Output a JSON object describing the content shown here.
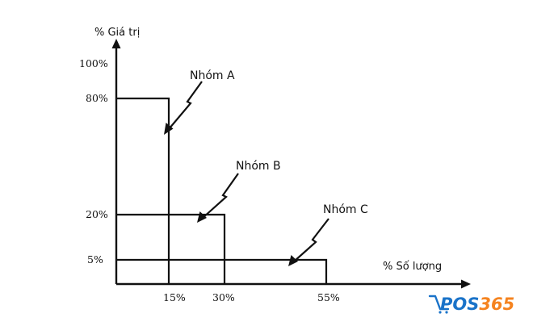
{
  "y_axis_label": "% Giá trị",
  "x_axis_label": "% Số lượng",
  "y_ticks": [
    "100%",
    "80%",
    "20%",
    "5%"
  ],
  "x_ticks": [
    "15%",
    "30%",
    "55%"
  ],
  "groups": [
    {
      "label": "Nhóm A",
      "x_end": 15,
      "y_level": 80
    },
    {
      "label": "Nhóm B",
      "x_end": 30,
      "y_level": 20
    },
    {
      "label": "Nhóm C",
      "x_end": 55,
      "y_level": 5
    }
  ],
  "logo": {
    "part1": "POS",
    "part2": "365",
    "color1": "#1a73c9",
    "color2": "#f5831f"
  },
  "colors": {
    "line": "#111111"
  }
}
